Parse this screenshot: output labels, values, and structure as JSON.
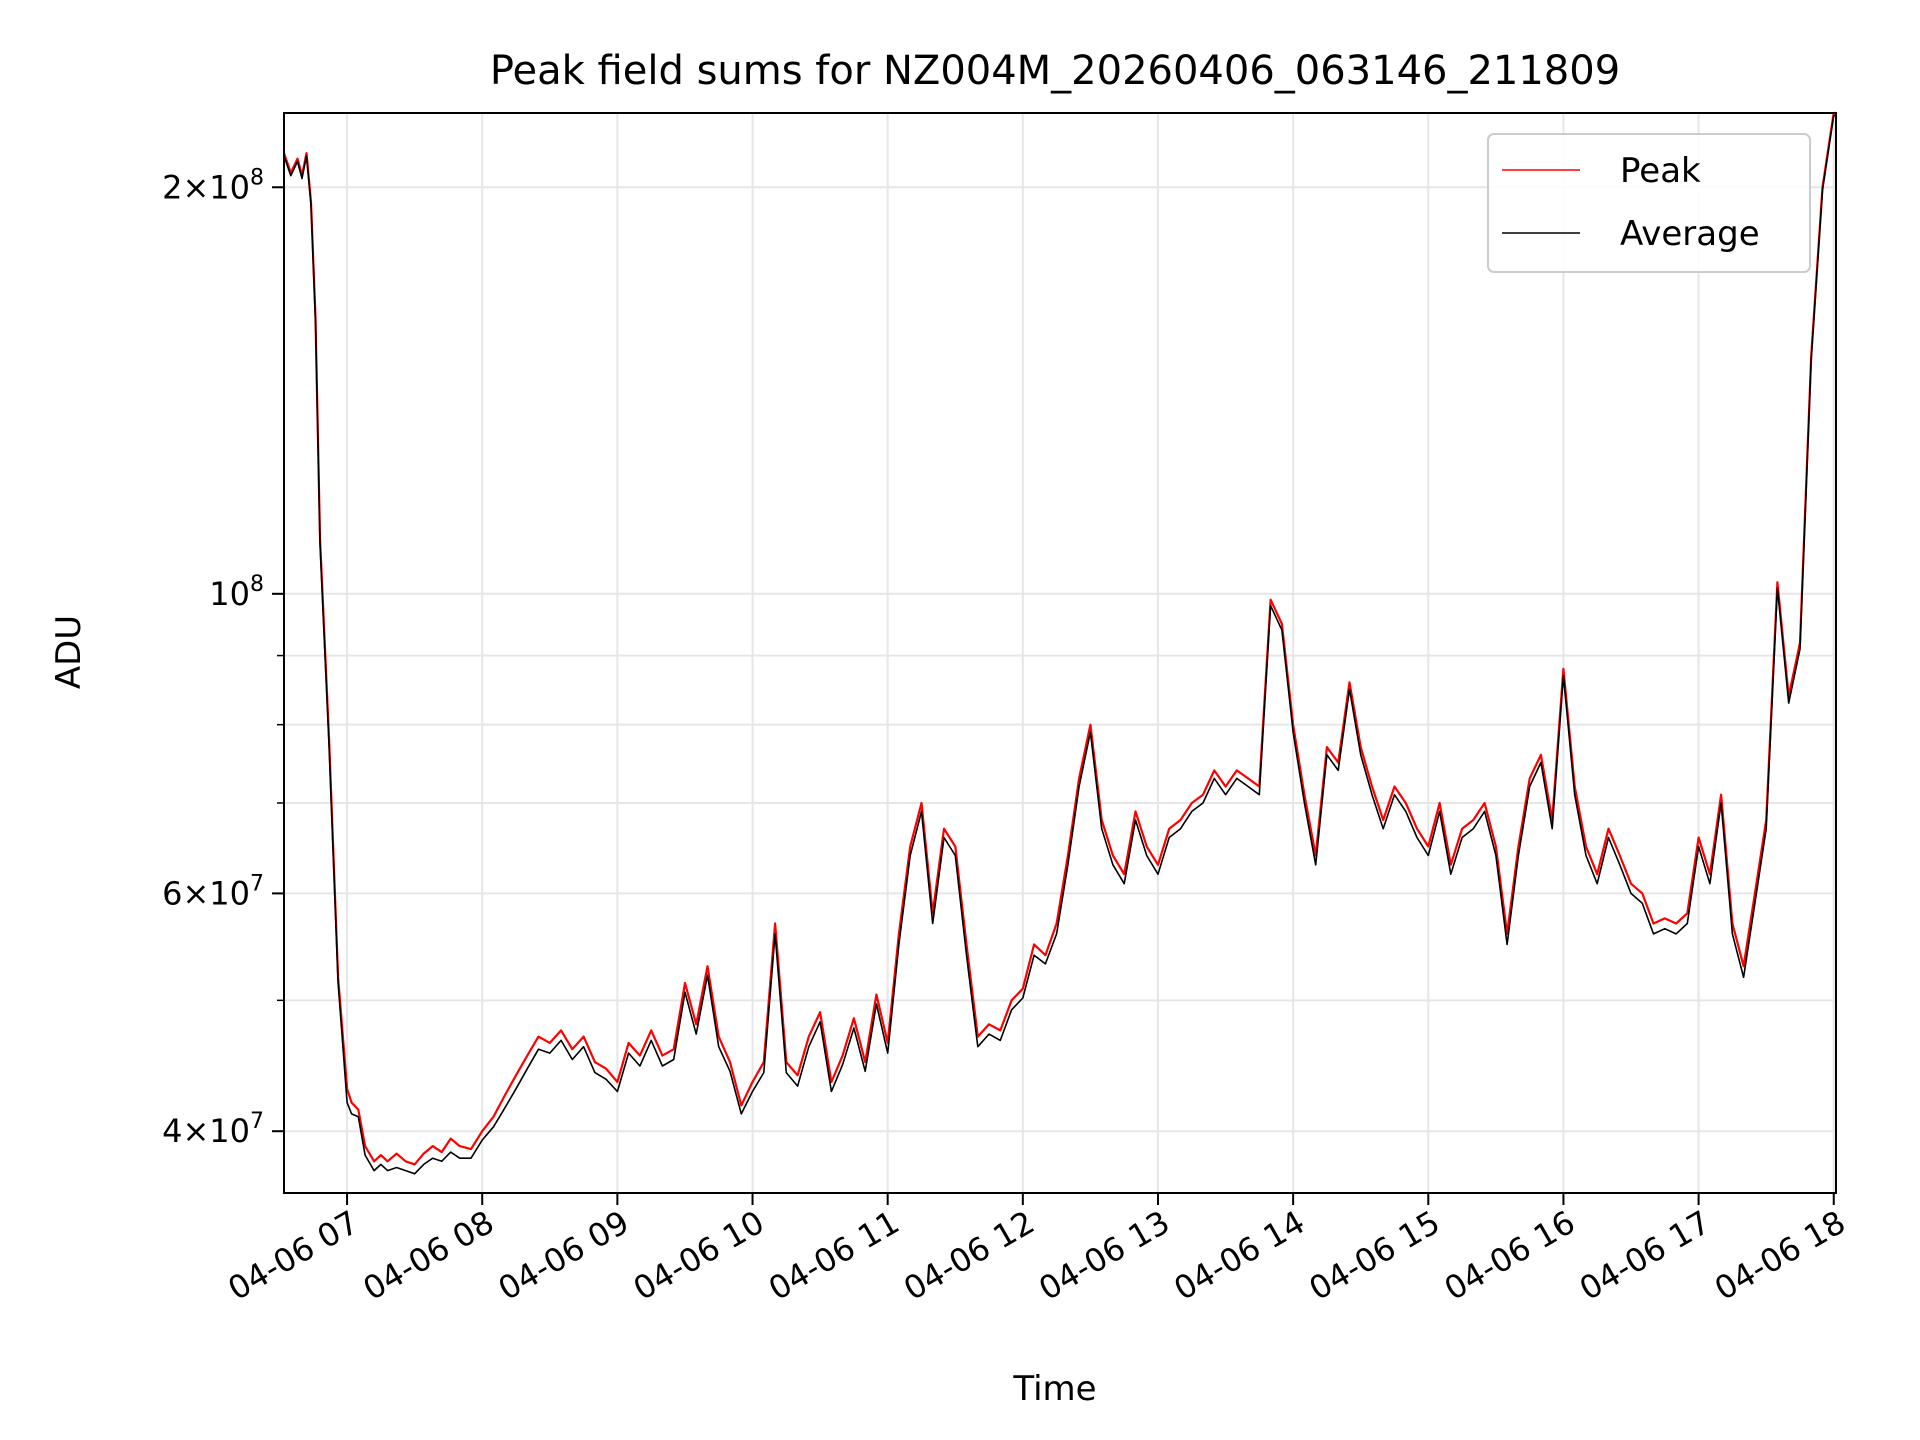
{
  "chart_data": {
    "type": "line",
    "title": "Peak field sums for NZ004M_20260406_063146_211809",
    "xlabel": "Time",
    "ylabel": "ADU",
    "yscale": "log",
    "grid": true,
    "legend_position": "top-right",
    "x_range": [
      "04-06 06:32",
      "04-06 18:01"
    ],
    "ylim": [
      36000000,
      227000000
    ],
    "x_ticks": [
      "04-06 07",
      "04-06 08",
      "04-06 09",
      "04-06 10",
      "04-06 11",
      "04-06 12",
      "04-06 13",
      "04-06 14",
      "04-06 15",
      "04-06 16",
      "04-06 17",
      "04-06 18"
    ],
    "y_ticks": [
      {
        "value": 40000000,
        "mantissa": "4",
        "exp": "7"
      },
      {
        "value": 60000000,
        "mantissa": "6",
        "exp": "7"
      },
      {
        "value": 100000000,
        "mantissa": "",
        "exp": "8"
      },
      {
        "value": 200000000,
        "mantissa": "2",
        "exp": "8"
      }
    ],
    "series": [
      {
        "name": "Peak",
        "color": "#ff0000",
        "x": [
          "06:32",
          "06:35",
          "06:38",
          "06:40",
          "06:42",
          "06:44",
          "06:46",
          "06:48",
          "06:52",
          "06:56",
          "07:00",
          "07:02",
          "07:05",
          "07:08",
          "07:12",
          "07:15",
          "07:18",
          "07:22",
          "07:26",
          "07:30",
          "07:34",
          "07:38",
          "07:42",
          "07:46",
          "07:50",
          "07:55",
          "08:00",
          "08:05",
          "08:10",
          "08:15",
          "08:20",
          "08:25",
          "08:30",
          "08:35",
          "08:40",
          "08:45",
          "08:50",
          "08:55",
          "09:00",
          "09:05",
          "09:10",
          "09:15",
          "09:20",
          "09:25",
          "09:30",
          "09:35",
          "09:40",
          "09:45",
          "09:50",
          "09:55",
          "10:00",
          "10:05",
          "10:10",
          "10:15",
          "10:20",
          "10:25",
          "10:30",
          "10:35",
          "10:40",
          "10:45",
          "10:50",
          "10:55",
          "11:00",
          "11:05",
          "11:10",
          "11:15",
          "11:20",
          "11:25",
          "11:30",
          "11:35",
          "11:40",
          "11:45",
          "11:50",
          "11:55",
          "12:00",
          "12:05",
          "12:10",
          "12:15",
          "12:20",
          "12:25",
          "12:30",
          "12:35",
          "12:40",
          "12:45",
          "12:50",
          "12:55",
          "13:00",
          "13:05",
          "13:10",
          "13:15",
          "13:20",
          "13:25",
          "13:30",
          "13:35",
          "13:40",
          "13:45",
          "13:50",
          "13:55",
          "14:00",
          "14:05",
          "14:10",
          "14:15",
          "14:20",
          "14:25",
          "14:30",
          "14:35",
          "14:40",
          "14:45",
          "14:50",
          "14:55",
          "15:00",
          "15:05",
          "15:10",
          "15:15",
          "15:20",
          "15:25",
          "15:30",
          "15:35",
          "15:40",
          "15:45",
          "15:50",
          "15:55",
          "16:00",
          "16:05",
          "16:10",
          "16:15",
          "16:20",
          "16:25",
          "16:30",
          "16:35",
          "16:40",
          "16:45",
          "16:50",
          "16:55",
          "17:00",
          "17:05",
          "17:10",
          "17:15",
          "17:20",
          "17:25",
          "17:30",
          "17:35",
          "17:40",
          "17:45",
          "17:50",
          "17:55",
          "18:00",
          "18:01"
        ],
        "y": [
          212000000,
          205000000,
          210000000,
          204000000,
          212000000,
          195000000,
          160000000,
          110000000,
          78000000,
          52000000,
          43000000,
          42000000,
          41500000,
          39000000,
          38000000,
          38400000,
          38000000,
          38500000,
          38000000,
          37800000,
          38500000,
          39000000,
          38600000,
          39500000,
          39000000,
          38800000,
          40000000,
          41000000,
          42500000,
          44000000,
          45500000,
          47000000,
          46500000,
          47500000,
          46000000,
          47000000,
          45000000,
          44500000,
          43500000,
          46500000,
          45500000,
          47500000,
          45500000,
          46000000,
          51500000,
          48000000,
          53000000,
          47000000,
          45000000,
          41800000,
          43500000,
          45000000,
          57000000,
          45000000,
          44000000,
          47000000,
          49000000,
          43500000,
          45500000,
          48500000,
          45000000,
          50500000,
          46500000,
          56000000,
          65000000,
          70000000,
          58000000,
          67000000,
          65000000,
          55000000,
          47000000,
          48000000,
          47500000,
          50000000,
          51000000,
          55000000,
          54000000,
          57000000,
          64000000,
          73000000,
          80000000,
          68000000,
          64000000,
          62000000,
          69000000,
          65000000,
          63000000,
          67000000,
          68000000,
          70000000,
          71000000,
          74000000,
          72000000,
          74000000,
          73000000,
          72000000,
          99000000,
          95000000,
          80000000,
          71000000,
          64000000,
          77000000,
          75000000,
          86000000,
          77000000,
          72000000,
          68000000,
          72000000,
          70000000,
          67000000,
          65000000,
          70000000,
          63000000,
          67000000,
          68000000,
          70000000,
          65000000,
          56000000,
          65000000,
          73000000,
          76000000,
          68000000,
          88000000,
          72000000,
          65000000,
          62000000,
          67000000,
          64000000,
          61000000,
          60000000,
          57000000,
          57500000,
          57000000,
          58000000,
          66000000,
          62000000,
          71000000,
          57000000,
          53000000,
          60000000,
          68000000,
          102000000,
          84000000,
          92000000,
          150000000,
          200000000,
          227000000,
          227000000
        ]
      },
      {
        "name": "Average",
        "color": "#000000",
        "x": [
          "06:32",
          "06:35",
          "06:38",
          "06:40",
          "06:42",
          "06:44",
          "06:46",
          "06:48",
          "06:52",
          "06:56",
          "07:00",
          "07:02",
          "07:05",
          "07:08",
          "07:12",
          "07:15",
          "07:18",
          "07:22",
          "07:26",
          "07:30",
          "07:34",
          "07:38",
          "07:42",
          "07:46",
          "07:50",
          "07:55",
          "08:00",
          "08:05",
          "08:10",
          "08:15",
          "08:20",
          "08:25",
          "08:30",
          "08:35",
          "08:40",
          "08:45",
          "08:50",
          "08:55",
          "09:00",
          "09:05",
          "09:10",
          "09:15",
          "09:20",
          "09:25",
          "09:30",
          "09:35",
          "09:40",
          "09:45",
          "09:50",
          "09:55",
          "10:00",
          "10:05",
          "10:10",
          "10:15",
          "10:20",
          "10:25",
          "10:30",
          "10:35",
          "10:40",
          "10:45",
          "10:50",
          "10:55",
          "11:00",
          "11:05",
          "11:10",
          "11:15",
          "11:20",
          "11:25",
          "11:30",
          "11:35",
          "11:40",
          "11:45",
          "11:50",
          "11:55",
          "12:00",
          "12:05",
          "12:10",
          "12:15",
          "12:20",
          "12:25",
          "12:30",
          "12:35",
          "12:40",
          "12:45",
          "12:50",
          "12:55",
          "13:00",
          "13:05",
          "13:10",
          "13:15",
          "13:20",
          "13:25",
          "13:30",
          "13:35",
          "13:40",
          "13:45",
          "13:50",
          "13:55",
          "14:00",
          "14:05",
          "14:10",
          "14:15",
          "14:20",
          "14:25",
          "14:30",
          "14:35",
          "14:40",
          "14:45",
          "14:50",
          "14:55",
          "15:00",
          "15:05",
          "15:10",
          "15:15",
          "15:20",
          "15:25",
          "15:30",
          "15:35",
          "15:40",
          "15:45",
          "15:50",
          "15:55",
          "16:00",
          "16:05",
          "16:10",
          "16:15",
          "16:20",
          "16:25",
          "16:30",
          "16:35",
          "16:40",
          "16:45",
          "16:50",
          "16:55",
          "17:00",
          "17:05",
          "17:10",
          "17:15",
          "17:20",
          "17:25",
          "17:30",
          "17:35",
          "17:40",
          "17:45",
          "17:50",
          "17:55",
          "18:00",
          "18:01"
        ],
        "y": [
          211000000,
          204000000,
          209000000,
          203000000,
          211000000,
          194000000,
          159000000,
          109000000,
          77000000,
          51500000,
          42000000,
          41200000,
          41000000,
          38400000,
          37400000,
          37800000,
          37400000,
          37600000,
          37400000,
          37200000,
          37800000,
          38200000,
          38000000,
          38600000,
          38200000,
          38200000,
          39400000,
          40300000,
          41600000,
          43000000,
          44500000,
          46000000,
          45700000,
          46700000,
          45200000,
          46200000,
          44200000,
          43700000,
          42800000,
          45700000,
          44700000,
          46700000,
          44700000,
          45200000,
          50700000,
          47200000,
          52200000,
          46200000,
          44300000,
          41200000,
          42800000,
          44200000,
          56000000,
          44200000,
          43200000,
          46200000,
          48200000,
          42800000,
          44800000,
          47700000,
          44300000,
          49700000,
          45700000,
          55000000,
          64000000,
          69000000,
          57000000,
          66000000,
          64000000,
          54000000,
          46200000,
          47200000,
          46700000,
          49200000,
          50200000,
          54000000,
          53200000,
          56000000,
          63000000,
          72000000,
          79000000,
          67000000,
          63000000,
          61000000,
          68000000,
          64000000,
          62000000,
          66000000,
          67000000,
          69000000,
          70000000,
          73000000,
          71000000,
          73000000,
          72000000,
          71000000,
          98000000,
          94000000,
          79000000,
          70000000,
          63000000,
          76000000,
          74000000,
          85000000,
          76000000,
          71000000,
          67000000,
          71000000,
          69000000,
          66000000,
          64000000,
          69000000,
          62000000,
          66000000,
          67000000,
          69000000,
          64000000,
          55000000,
          64000000,
          72000000,
          75000000,
          67000000,
          87000000,
          71000000,
          64000000,
          61000000,
          66000000,
          63000000,
          60000000,
          59000000,
          56000000,
          56500000,
          56000000,
          57000000,
          65000000,
          61000000,
          70000000,
          56000000,
          52000000,
          59000000,
          67000000,
          101000000,
          83000000,
          91000000,
          149000000,
          199000000,
          226000000,
          226000000
        ]
      }
    ]
  }
}
